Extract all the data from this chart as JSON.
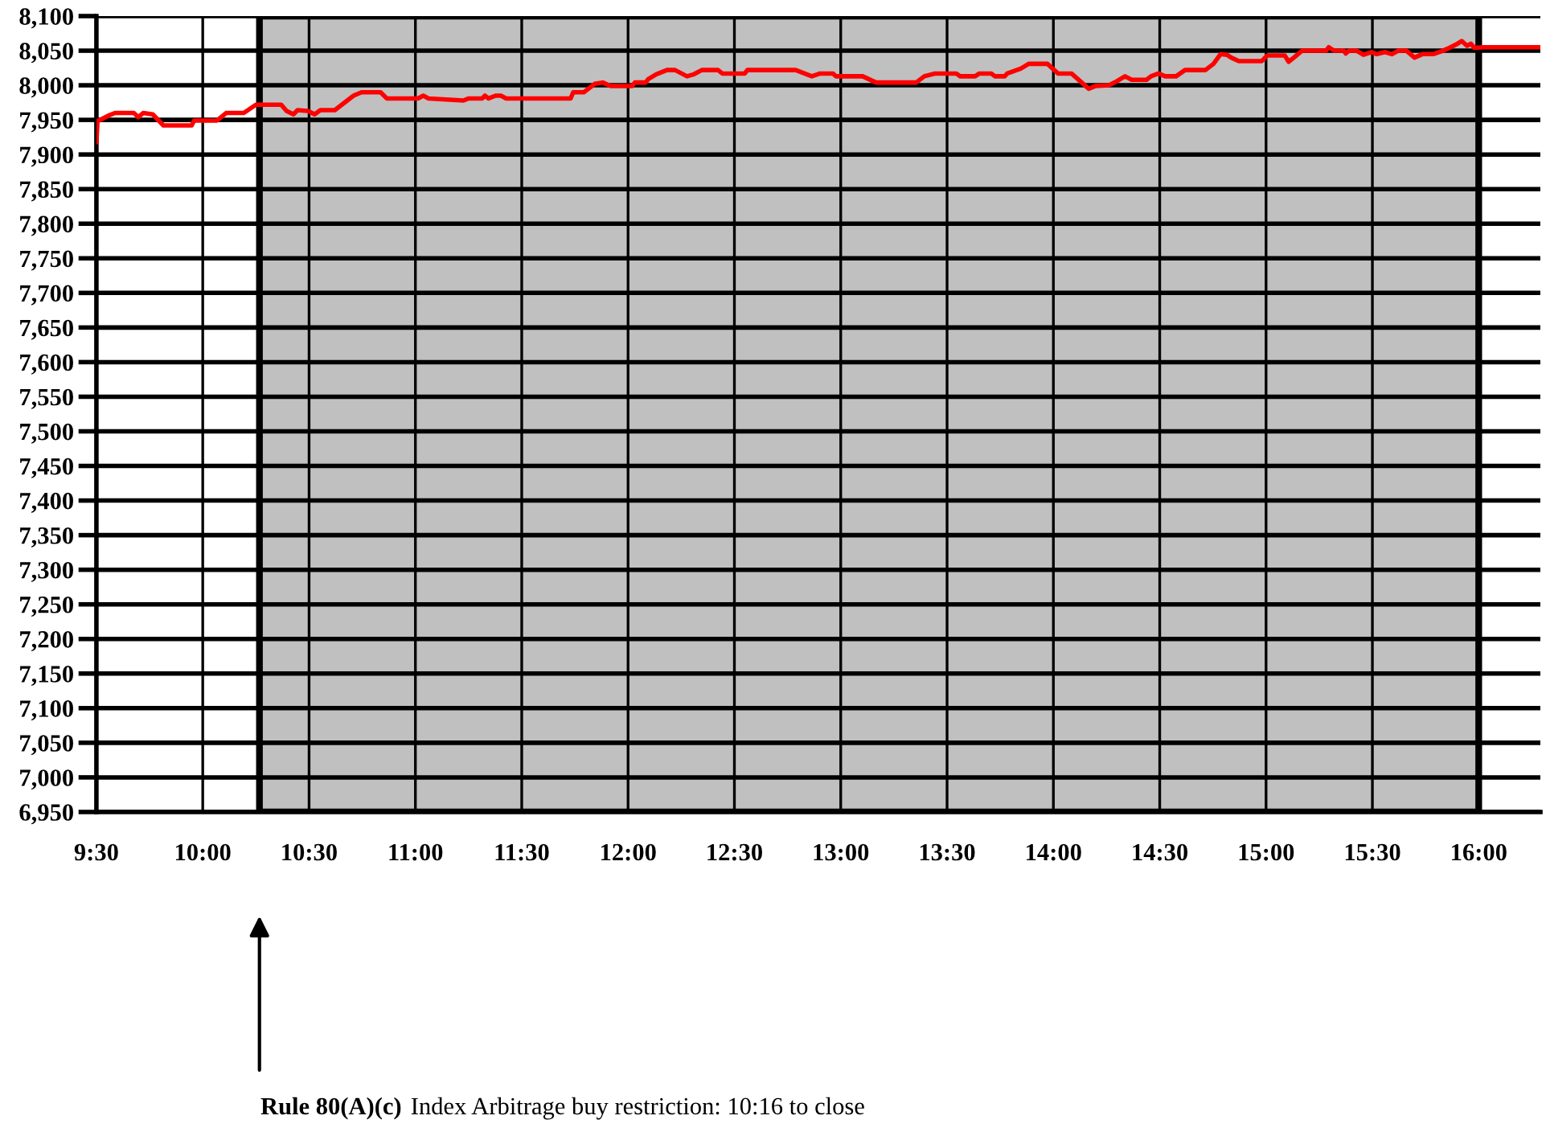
{
  "chart_data": {
    "type": "line",
    "x": [
      9.5,
      9.505,
      9.563,
      9.588,
      9.676,
      9.697,
      9.72,
      9.765,
      9.815,
      9.948,
      9.959,
      10.067,
      10.11,
      10.193,
      10.25,
      10.369,
      10.394,
      10.427,
      10.445,
      10.495,
      10.526,
      10.553,
      10.621,
      10.709,
      10.747,
      10.836,
      10.866,
      11.012,
      11.037,
      11.062,
      11.226,
      11.251,
      11.314,
      11.327,
      11.344,
      11.377,
      11.402,
      11.427,
      11.465,
      11.73,
      11.742,
      11.792,
      11.843,
      11.881,
      11.919,
      12.019,
      12.032,
      12.083,
      12.095,
      12.133,
      12.183,
      12.221,
      12.277,
      12.31,
      12.347,
      12.423,
      12.443,
      12.549,
      12.561,
      12.788,
      12.864,
      12.902,
      12.964,
      12.977,
      13.103,
      13.166,
      13.355,
      13.393,
      13.443,
      13.544,
      13.562,
      13.632,
      13.652,
      13.708,
      13.725,
      13.771,
      13.783,
      13.846,
      13.884,
      13.972,
      14.022,
      14.085,
      14.166,
      14.199,
      14.262,
      14.299,
      14.337,
      14.368,
      14.438,
      14.459,
      14.494,
      14.526,
      14.577,
      14.619,
      14.715,
      14.753,
      14.786,
      14.816,
      14.836,
      14.872,
      14.98,
      15.005,
      15.088,
      15.106,
      15.131,
      15.169,
      15.282,
      15.295,
      15.32,
      15.365,
      15.375,
      15.39,
      15.426,
      15.458,
      15.496,
      15.52,
      15.559,
      15.592,
      15.622,
      15.66,
      15.698,
      15.735,
      15.786,
      15.824,
      15.862,
      15.9,
      15.92,
      15.945,
      15.963,
      15.98,
      16.025,
      16.287
    ],
    "series": [
      {
        "color": "#ff0000",
        "values": [
          7918,
          7948,
          7957,
          7960,
          7960,
          7954,
          7960,
          7958,
          7942,
          7942,
          7949,
          7949,
          7960,
          7960,
          7972,
          7972,
          7963,
          7958,
          7964,
          7963,
          7958,
          7964,
          7964,
          7985,
          7990,
          7990,
          7981,
          7981,
          7985,
          7981,
          7978,
          7981,
          7981,
          7985,
          7981,
          7985,
          7985,
          7981,
          7981,
          7981,
          7990,
          7990,
          8002,
          8004,
          7999,
          7999,
          8004,
          8004,
          8009,
          8016,
          8022,
          8022,
          8013,
          8016,
          8022,
          8022,
          8017,
          8017,
          8022,
          8022,
          8013,
          8017,
          8017,
          8013,
          8013,
          8004,
          8004,
          8013,
          8017,
          8017,
          8013,
          8013,
          8017,
          8017,
          8013,
          8013,
          8017,
          8024,
          8031,
          8031,
          8017,
          8017,
          7995,
          7999,
          8000,
          8006,
          8013,
          8008,
          8008,
          8013,
          8017,
          8013,
          8013,
          8022,
          8022,
          8031,
          8045,
          8044,
          8040,
          8035,
          8035,
          8043,
          8043,
          8034,
          8040,
          8050,
          8050,
          8055,
          8050,
          8050,
          8046,
          8050,
          8050,
          8044,
          8048,
          8045,
          8048,
          8045,
          8050,
          8050,
          8040,
          8045,
          8045,
          8049,
          8054,
          8060,
          8064,
          8057,
          8060,
          8054,
          8055,
          8055
        ]
      }
    ],
    "xlim": [
      9.5,
      16.29
    ],
    "xticks": [
      {
        "value": 9.5,
        "label": "9:30"
      },
      {
        "value": 10,
        "label": "10:00"
      },
      {
        "value": 10.5,
        "label": "10:30"
      },
      {
        "value": 11,
        "label": "11:00"
      },
      {
        "value": 11.5,
        "label": "11:30"
      },
      {
        "value": 12,
        "label": "12:00"
      },
      {
        "value": 12.5,
        "label": "12:30"
      },
      {
        "value": 13,
        "label": "13:00"
      },
      {
        "value": 13.5,
        "label": "13:30"
      },
      {
        "value": 14,
        "label": "14:00"
      },
      {
        "value": 14.5,
        "label": "14:30"
      },
      {
        "value": 15,
        "label": "15:00"
      },
      {
        "value": 15.5,
        "label": "15:30"
      },
      {
        "value": 16,
        "label": "16:00"
      }
    ],
    "ylim": [
      6950,
      8100
    ],
    "yticks": [
      {
        "value": 6950,
        "label": "6,950"
      },
      {
        "value": 7000,
        "label": "7,000"
      },
      {
        "value": 7050,
        "label": "7,050"
      },
      {
        "value": 7100,
        "label": "7,100"
      },
      {
        "value": 7150,
        "label": "7,150"
      },
      {
        "value": 7200,
        "label": "7,200"
      },
      {
        "value": 7250,
        "label": "7,250"
      },
      {
        "value": 7300,
        "label": "7,300"
      },
      {
        "value": 7350,
        "label": "7,350"
      },
      {
        "value": 7400,
        "label": "7,400"
      },
      {
        "value": 7450,
        "label": "7,450"
      },
      {
        "value": 7500,
        "label": "7,500"
      },
      {
        "value": 7550,
        "label": "7,550"
      },
      {
        "value": 7600,
        "label": "7,600"
      },
      {
        "value": 7650,
        "label": "7,650"
      },
      {
        "value": 7700,
        "label": "7,700"
      },
      {
        "value": 7750,
        "label": "7,750"
      },
      {
        "value": 7800,
        "label": "7,800"
      },
      {
        "value": 7850,
        "label": "7,850"
      },
      {
        "value": 7900,
        "label": "7,900"
      },
      {
        "value": 7950,
        "label": "7,950"
      },
      {
        "value": 8000,
        "label": "8,000"
      },
      {
        "value": 8050,
        "label": "8,050"
      },
      {
        "value": 8100,
        "label": "8,100"
      }
    ],
    "bands": [
      {
        "axis": "x",
        "from": 10.2667,
        "to": 16,
        "color": "#c0c0c0"
      }
    ],
    "annotations": [
      "Rule 80(A)(c)",
      "Index Arbitrage buy restriction: 10:16 to close"
    ],
    "grid": true,
    "marker": "none",
    "line_style": "solid"
  }
}
